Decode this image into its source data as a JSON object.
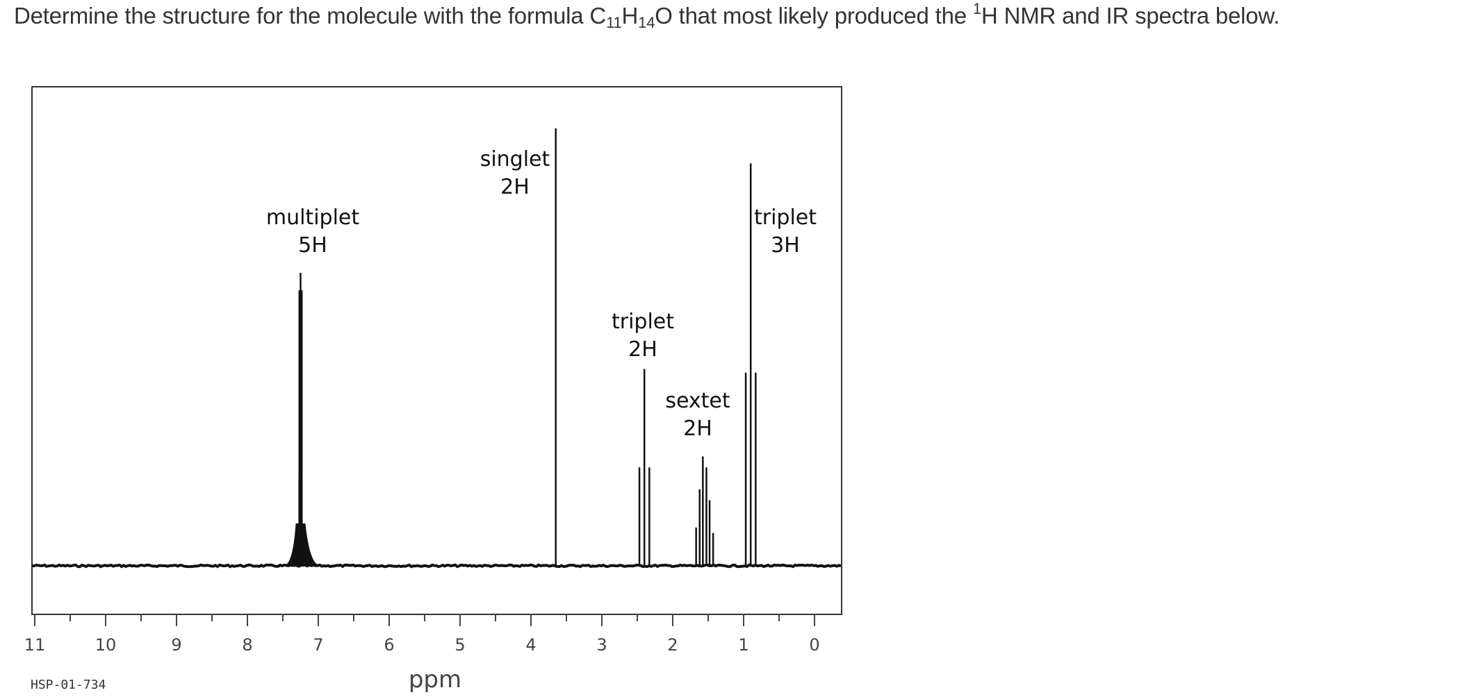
{
  "question": {
    "before": "Determine the structure for the molecule with the formula C",
    "sub1": "11",
    "h": "H",
    "sub2": "14",
    "mid": "O that most likely produced the ",
    "sup": "1",
    "after": "H NMR and IR spectra below."
  },
  "chart_data": {
    "type": "line",
    "title": "",
    "xlabel": "ppm",
    "ylabel": "",
    "xlim": [
      11,
      0
    ],
    "x_reversed": true,
    "grid": false,
    "major_ticks": [
      11,
      10,
      9,
      8,
      7,
      6,
      5,
      4,
      3,
      2,
      1,
      0
    ],
    "tick_labels": [
      "11",
      "10",
      "9",
      "8",
      "7",
      "6",
      "5",
      "4",
      "3",
      "2",
      "1",
      "0"
    ],
    "corner_code": "HSP-01-734",
    "peaks": [
      {
        "shift_ppm": 7.25,
        "rel_height": 0.67,
        "multiplicity": "multiplet",
        "integration": "5H"
      },
      {
        "shift_ppm": 3.65,
        "rel_height": 1.0,
        "multiplicity": "singlet",
        "integration": "2H"
      },
      {
        "shift_ppm": 2.4,
        "rel_height": 0.45,
        "multiplicity": "triplet",
        "integration": "2H"
      },
      {
        "shift_ppm": 1.55,
        "rel_height": 0.25,
        "multiplicity": "sextet",
        "integration": "2H"
      },
      {
        "shift_ppm": 0.9,
        "rel_height": 0.92,
        "multiplicity": "triplet",
        "integration": "3H"
      }
    ]
  }
}
